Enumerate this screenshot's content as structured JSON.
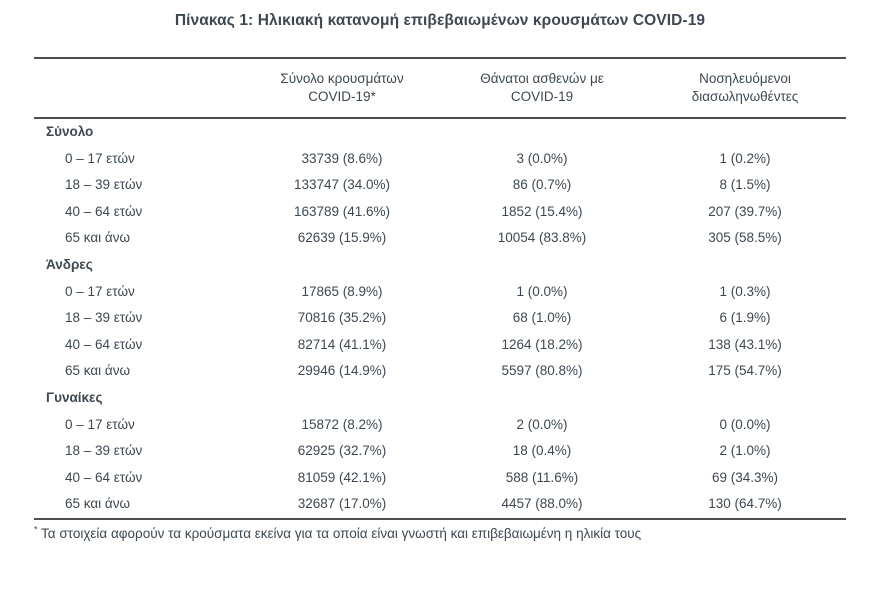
{
  "title": "Πίνακας 1: Ηλικιακή κατανομή επιβεβαιωμένων κρουσμάτων COVID-19",
  "table": {
    "headers": {
      "cases": [
        "Σύνολο κρουσμάτων",
        "COVID-19*"
      ],
      "deaths": [
        "Θάνατοι ασθενών με",
        "COVID-19"
      ],
      "intubated": [
        "Νοσηλευόμενοι",
        "διασωληνωθέντες"
      ]
    },
    "sections": [
      {
        "label": "Σύνολο",
        "rows": [
          {
            "age": "0 – 17 ετών",
            "cases": "33739 (8.6%)",
            "deaths": "3 (0.0%)",
            "intubated": "1 (0.2%)"
          },
          {
            "age": "18 – 39 ετών",
            "cases": "133747 (34.0%)",
            "deaths": "86 (0.7%)",
            "intubated": "8 (1.5%)"
          },
          {
            "age": "40 – 64 ετών",
            "cases": "163789 (41.6%)",
            "deaths": "1852 (15.4%)",
            "intubated": "207 (39.7%)"
          },
          {
            "age": "65 και άνω",
            "cases": "62639 (15.9%)",
            "deaths": "10054 (83.8%)",
            "intubated": "305 (58.5%)"
          }
        ]
      },
      {
        "label": "Άνδρες",
        "rows": [
          {
            "age": "0 – 17 ετών",
            "cases": "17865 (8.9%)",
            "deaths": "1 (0.0%)",
            "intubated": "1 (0.3%)"
          },
          {
            "age": "18 – 39 ετών",
            "cases": "70816 (35.2%)",
            "deaths": "68 (1.0%)",
            "intubated": "6 (1.9%)"
          },
          {
            "age": "40 – 64 ετών",
            "cases": "82714 (41.1%)",
            "deaths": "1264 (18.2%)",
            "intubated": "138 (43.1%)"
          },
          {
            "age": "65 και άνω",
            "cases": "29946 (14.9%)",
            "deaths": "5597 (80.8%)",
            "intubated": "175 (54.7%)"
          }
        ]
      },
      {
        "label": "Γυναίκες",
        "rows": [
          {
            "age": "0 – 17 ετών",
            "cases": "15872 (8.2%)",
            "deaths": "2 (0.0%)",
            "intubated": "0 (0.0%)"
          },
          {
            "age": "18 – 39 ετών",
            "cases": "62925 (32.7%)",
            "deaths": "18 (0.4%)",
            "intubated": "2 (1.0%)"
          },
          {
            "age": "40 – 64 ετών",
            "cases": "81059 (42.1%)",
            "deaths": "588 (11.6%)",
            "intubated": "69 (34.3%)"
          },
          {
            "age": "65 και άνω",
            "cases": "32687 (17.0%)",
            "deaths": "4457 (88.0%)",
            "intubated": "130 (64.7%)"
          }
        ]
      }
    ]
  },
  "footnote": {
    "marker": "*",
    "text": "Τα στοιχεία αφορούν τα κρούσματα εκείνα για τα οποία είναι γνωστή και επιβεβαιωμένη η ηλικία τους"
  },
  "colors": {
    "text": "#3d4852",
    "rule": "#4d4d4d",
    "background": "#ffffff"
  }
}
